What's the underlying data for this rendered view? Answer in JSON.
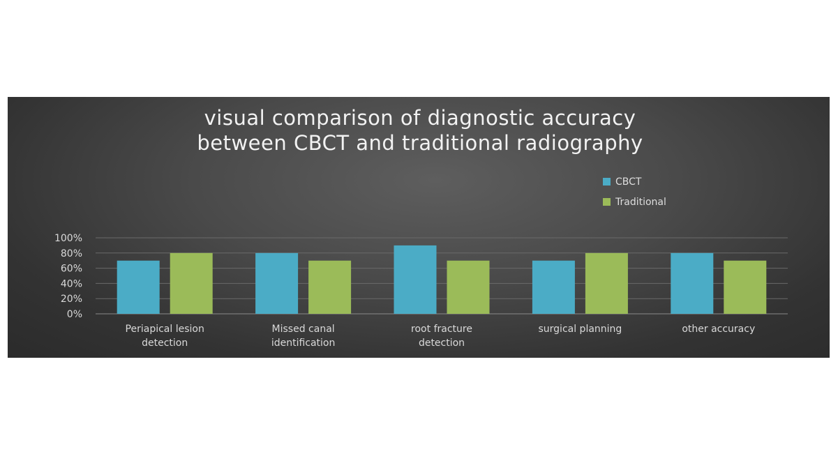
{
  "chart_data": {
    "type": "bar",
    "title_lines": [
      "visual comparison of diagnostic accuracy",
      "between CBCT and traditional radiography"
    ],
    "categories": [
      [
        "Periapical lesion",
        "detection"
      ],
      [
        "Missed canal",
        "identification"
      ],
      [
        "root fracture",
        "detection"
      ],
      [
        "surgical planning"
      ],
      [
        "other accuracy"
      ]
    ],
    "series": [
      {
        "name": "CBCT",
        "color": "#4bacc6",
        "values": [
          70,
          80,
          90,
          70,
          80
        ]
      },
      {
        "name": "Traditional",
        "color": "#9bbb59",
        "values": [
          80,
          70,
          70,
          80,
          70
        ]
      }
    ],
    "yticks": [
      "0%",
      "20%",
      "40%",
      "60%",
      "80%",
      "100%"
    ],
    "ylim": [
      0,
      100
    ],
    "legend_position": "top-right",
    "grid": true
  }
}
